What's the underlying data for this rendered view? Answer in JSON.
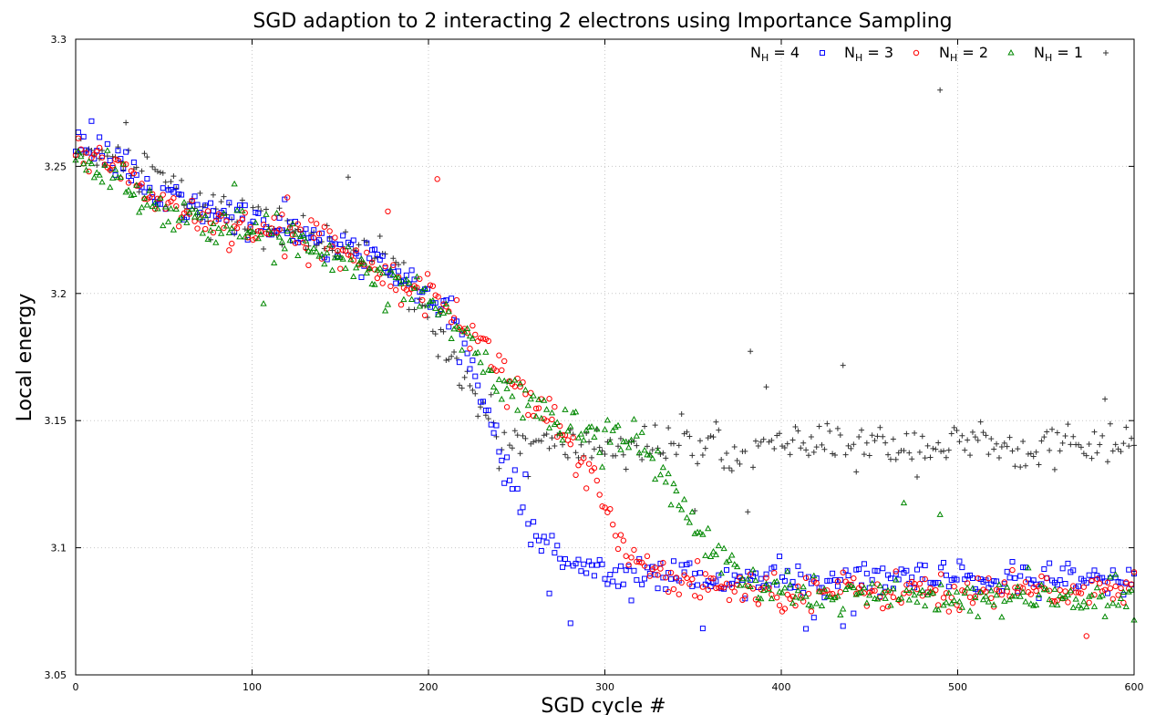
{
  "chart_data": {
    "type": "scatter",
    "title": "SGD adaption to 2 interacting 2 electrons using Importance Sampling",
    "xlabel": "SGD cycle #",
    "ylabel": "Local energy",
    "xlim": [
      0,
      600
    ],
    "ylim": [
      3.05,
      3.3
    ],
    "xticks": [
      "0",
      "100",
      "200",
      "300",
      "400",
      "500",
      "600"
    ],
    "yticks": [
      "3.05",
      "3.1",
      "3.15",
      "3.2",
      "3.25",
      "3.3"
    ],
    "grid": true,
    "legend_position": "top-right",
    "series": [
      {
        "name_main": "N",
        "name_sub": "H",
        "name_rest": " = 4",
        "marker": "square",
        "color": "#0000ff",
        "keypoints": [
          [
            0,
            3.255
          ],
          [
            20,
            3.255
          ],
          [
            40,
            3.24
          ],
          [
            60,
            3.235
          ],
          [
            80,
            3.232
          ],
          [
            100,
            3.228
          ],
          [
            120,
            3.225
          ],
          [
            140,
            3.22
          ],
          [
            160,
            3.215
          ],
          [
            180,
            3.208
          ],
          [
            200,
            3.2
          ],
          [
            210,
            3.19
          ],
          [
            220,
            3.18
          ],
          [
            230,
            3.16
          ],
          [
            240,
            3.14
          ],
          [
            250,
            3.12
          ],
          [
            260,
            3.105
          ],
          [
            270,
            3.1
          ],
          [
            280,
            3.095
          ],
          [
            300,
            3.092
          ],
          [
            320,
            3.09
          ],
          [
            350,
            3.088
          ],
          [
            400,
            3.087
          ],
          [
            500,
            3.087
          ],
          [
            600,
            3.087
          ]
        ],
        "spread": 0.006
      },
      {
        "name_main": "N",
        "name_sub": "H",
        "name_rest": " = 3",
        "marker": "circle",
        "color": "#ff0000",
        "keypoints": [
          [
            0,
            3.255
          ],
          [
            20,
            3.253
          ],
          [
            40,
            3.24
          ],
          [
            60,
            3.232
          ],
          [
            80,
            3.228
          ],
          [
            100,
            3.226
          ],
          [
            120,
            3.224
          ],
          [
            140,
            3.22
          ],
          [
            160,
            3.215
          ],
          [
            180,
            3.208
          ],
          [
            200,
            3.2
          ],
          [
            210,
            3.195
          ],
          [
            220,
            3.188
          ],
          [
            230,
            3.18
          ],
          [
            240,
            3.172
          ],
          [
            250,
            3.165
          ],
          [
            260,
            3.158
          ],
          [
            270,
            3.15
          ],
          [
            280,
            3.14
          ],
          [
            290,
            3.128
          ],
          [
            300,
            3.115
          ],
          [
            310,
            3.103
          ],
          [
            320,
            3.094
          ],
          [
            340,
            3.088
          ],
          [
            360,
            3.085
          ],
          [
            400,
            3.083
          ],
          [
            500,
            3.083
          ],
          [
            600,
            3.083
          ]
        ],
        "spread": 0.006
      },
      {
        "name_main": "N",
        "name_sub": "H",
        "name_rest": " = 2",
        "marker": "triangle",
        "color": "#008800",
        "keypoints": [
          [
            0,
            3.25
          ],
          [
            20,
            3.248
          ],
          [
            40,
            3.238
          ],
          [
            60,
            3.23
          ],
          [
            80,
            3.226
          ],
          [
            100,
            3.224
          ],
          [
            120,
            3.222
          ],
          [
            140,
            3.218
          ],
          [
            160,
            3.212
          ],
          [
            180,
            3.206
          ],
          [
            200,
            3.198
          ],
          [
            210,
            3.192
          ],
          [
            220,
            3.184
          ],
          [
            230,
            3.175
          ],
          [
            240,
            3.165
          ],
          [
            260,
            3.155
          ],
          [
            280,
            3.148
          ],
          [
            300,
            3.145
          ],
          [
            310,
            3.143
          ],
          [
            320,
            3.14
          ],
          [
            330,
            3.132
          ],
          [
            340,
            3.12
          ],
          [
            350,
            3.11
          ],
          [
            360,
            3.1
          ],
          [
            370,
            3.092
          ],
          [
            380,
            3.086
          ],
          [
            400,
            3.082
          ],
          [
            500,
            3.08
          ],
          [
            600,
            3.08
          ]
        ],
        "spread": 0.006
      },
      {
        "name_main": "N",
        "name_sub": "H",
        "name_rest": " = 1",
        "marker": "plus",
        "color": "#333333",
        "keypoints": [
          [
            0,
            3.255
          ],
          [
            20,
            3.255
          ],
          [
            40,
            3.25
          ],
          [
            60,
            3.238
          ],
          [
            80,
            3.232
          ],
          [
            100,
            3.228
          ],
          [
            120,
            3.225
          ],
          [
            140,
            3.222
          ],
          [
            160,
            3.217
          ],
          [
            180,
            3.21
          ],
          [
            190,
            3.2
          ],
          [
            200,
            3.192
          ],
          [
            210,
            3.18
          ],
          [
            220,
            3.168
          ],
          [
            230,
            3.155
          ],
          [
            240,
            3.145
          ],
          [
            260,
            3.14
          ],
          [
            300,
            3.14
          ],
          [
            400,
            3.14
          ],
          [
            500,
            3.14
          ],
          [
            600,
            3.14
          ]
        ],
        "spread": 0.007
      }
    ],
    "notable_points": [
      {
        "series": 3,
        "x": 490,
        "y": 3.28
      },
      {
        "series": 1,
        "x": 205,
        "y": 3.245
      },
      {
        "series": 2,
        "x": 490,
        "y": 3.113
      }
    ]
  }
}
